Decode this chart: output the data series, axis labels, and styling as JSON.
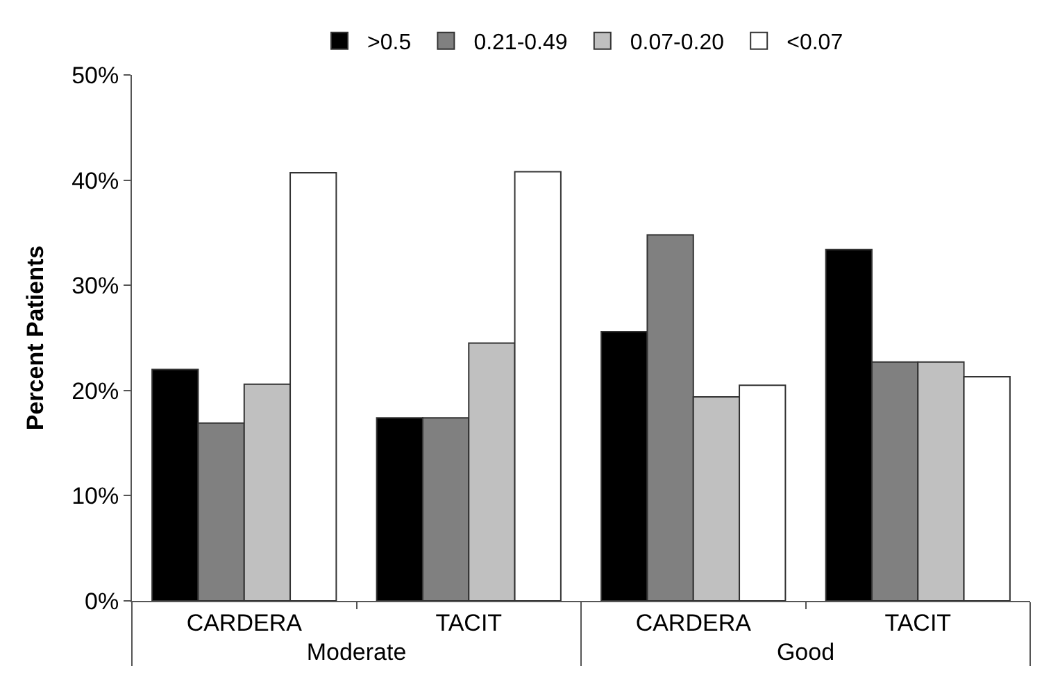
{
  "chart_data": {
    "type": "bar",
    "ylabel": "Percent Patients",
    "categories": [
      "CARDERA",
      "TACIT",
      "CARDERA",
      "TACIT"
    ],
    "annotations": [
      "Moderate",
      "Good"
    ],
    "series": [
      {
        "name": ">0.5",
        "color": "#000000",
        "values": [
          22.0,
          17.4,
          25.6,
          33.4
        ]
      },
      {
        "name": "0.21-0.49",
        "color": "#808080",
        "values": [
          16.9,
          17.4,
          34.8,
          22.7
        ]
      },
      {
        "name": "0.07-0.20",
        "color": "#c0c0c0",
        "values": [
          20.6,
          24.5,
          19.4,
          22.7
        ]
      },
      {
        "name": "<0.07",
        "color": "#ffffff",
        "values": [
          40.7,
          40.8,
          20.5,
          21.3
        ]
      }
    ],
    "ylim": [
      0,
      50
    ],
    "yticks": [
      {
        "value": 0,
        "label": "0%"
      },
      {
        "value": 10,
        "label": "10%"
      },
      {
        "value": 20,
        "label": "20%"
      },
      {
        "value": 30,
        "label": "30%"
      },
      {
        "value": 40,
        "label": "40%"
      },
      {
        "value": 50,
        "label": "50%"
      }
    ],
    "legend": "top"
  }
}
